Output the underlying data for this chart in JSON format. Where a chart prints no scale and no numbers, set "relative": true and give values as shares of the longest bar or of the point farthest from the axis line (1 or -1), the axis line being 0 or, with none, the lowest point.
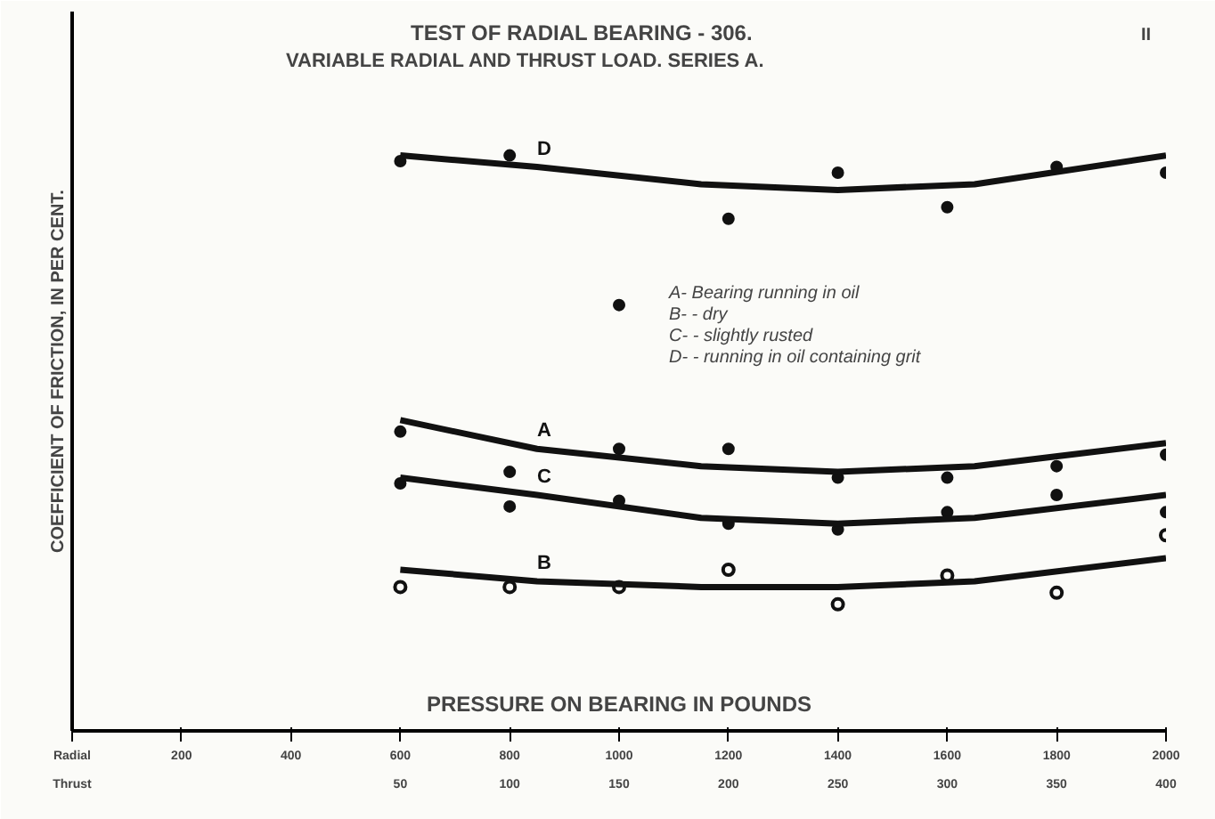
{
  "chart_data": {
    "type": "scatter",
    "title": "TEST OF RADIAL BEARING - 306.",
    "subtitle": "VARIABLE RADIAL AND THRUST LOAD.    SERIES A.",
    "xlabel": "PRESSURE ON BEARING IN POUNDS",
    "ylabel": "COEFFICIENT OF FRICTION, IN PER CENT.",
    "relative": true,
    "xlim": [
      0,
      2000
    ],
    "xticks": [
      {
        "value": 0,
        "label": "Radial"
      },
      200,
      400,
      600,
      800,
      1000,
      1200,
      1400,
      1600,
      1800,
      2000
    ],
    "x2lim": [
      -100,
      400
    ],
    "x2ticks": [
      {
        "value": -100,
        "label": "Thrust"
      },
      50,
      100,
      150,
      200,
      250,
      300,
      350,
      400
    ],
    "x": [
      600,
      800,
      1000,
      1200,
      1400,
      1600,
      1800,
      2000
    ],
    "grid": false,
    "annotations": [
      "A- Bearing running in oil",
      "B-   -   dry",
      "C-   -   slightly rusted",
      "D-   -   running in oil containing grit",
      "II"
    ],
    "series": [
      {
        "color": "#111111",
        "marker": "circle",
        "values": [
          0.99,
          1.0,
          0.74,
          0.89,
          0.97,
          0.91,
          0.98,
          0.97
        ]
      },
      {
        "color": "#111111",
        "marker": "circle",
        "values": [
          0.52,
          0.45,
          0.49,
          0.49,
          0.44,
          0.44,
          0.46,
          0.48
        ]
      },
      {
        "color": "#111111",
        "marker": "circle",
        "values": [
          0.43,
          0.39,
          0.4,
          0.36,
          0.35,
          0.38,
          0.41,
          0.38
        ]
      },
      {
        "color": "#111111",
        "marker": "circle_open",
        "values": [
          0.25,
          0.25,
          0.25,
          0.28,
          0.22,
          0.27,
          0.24,
          0.34
        ]
      },
      {
        "type": "line",
        "name": "D",
        "color": "#111111",
        "line_style": "solid",
        "x": [
          600,
          850,
          1150,
          1400,
          1650,
          2000
        ],
        "values": [
          1.0,
          0.98,
          0.95,
          0.94,
          0.95,
          1.0
        ]
      },
      {
        "type": "line",
        "name": "A",
        "color": "#111111",
        "line_style": "solid",
        "x": [
          600,
          850,
          1150,
          1400,
          1650,
          2000
        ],
        "values": [
          0.54,
          0.49,
          0.46,
          0.45,
          0.46,
          0.5
        ]
      },
      {
        "type": "line",
        "name": "C",
        "color": "#111111",
        "line_style": "solid",
        "x": [
          600,
          850,
          1150,
          1400,
          1650,
          2000
        ],
        "values": [
          0.44,
          0.41,
          0.37,
          0.36,
          0.37,
          0.41
        ]
      },
      {
        "type": "line",
        "name": "B",
        "color": "#111111",
        "line_style": "solid",
        "x": [
          600,
          850,
          1150,
          1400,
          1650,
          2000
        ],
        "values": [
          0.28,
          0.26,
          0.25,
          0.25,
          0.26,
          0.3
        ]
      }
    ]
  }
}
